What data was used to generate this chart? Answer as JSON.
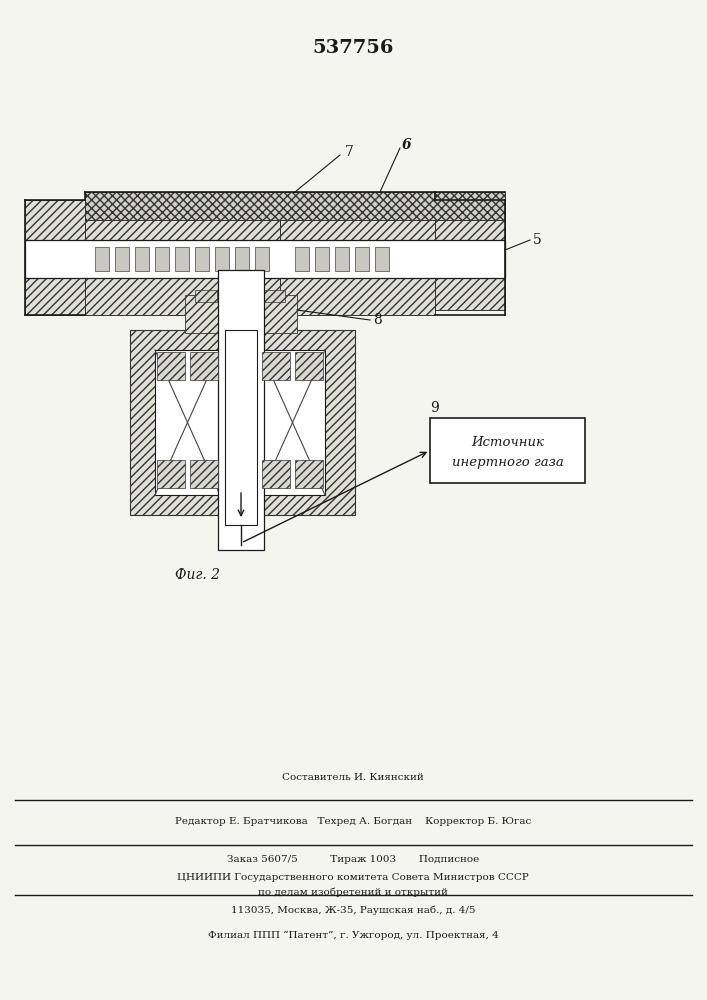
{
  "title": "537756",
  "fig_label": "Фиг. 2",
  "box_label_line1": "Источник",
  "box_label_line2": "инертного газа",
  "label_5": "5",
  "label_6": "6",
  "label_7": "7",
  "label_8": "8",
  "label_9": "9",
  "bottom_text_line1": "Составитель И. Киянский",
  "bottom_text_line2": "Редактор Е. Братчикова   Техред А. Богдан    Корректор Б. Югас",
  "bottom_text_line3": "Заказ 5607/5          Тираж 1003       Подписное",
  "bottom_text_line4": "ЦНИИПИ Государственного комитета Совета Министров СССР",
  "bottom_text_line5": "по делам изобретений и открытий",
  "bottom_text_line6": "113035, Москва, Ж-35, Раушская наб., д. 4/5",
  "bottom_text_line7": "Филиал ППП “Патент”, г. Ужгород, ул. Проектная, 4",
  "bg_color": "#f5f5f0",
  "line_color": "#1a1a1a"
}
